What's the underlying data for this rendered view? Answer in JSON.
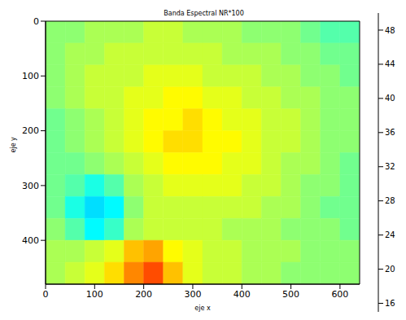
{
  "chart_data": {
    "type": "heatmap",
    "title": "Banda Espectral NR*100",
    "x_label": "eje x",
    "y_label": "eje y",
    "xlim": [
      0,
      640
    ],
    "xticks": [
      0,
      100,
      200,
      300,
      400,
      500,
      600
    ],
    "ylim": [
      480,
      0
    ],
    "yticks": [
      0,
      100,
      200,
      300,
      400
    ],
    "x_edges": [
      0,
      40,
      80,
      120,
      160,
      200,
      240,
      280,
      320,
      360,
      400,
      440,
      480,
      520,
      560,
      600,
      640
    ],
    "y_edges": [
      0,
      40,
      80,
      120,
      160,
      200,
      240,
      280,
      320,
      360,
      400,
      440,
      480
    ],
    "cells": [
      [
        33,
        33,
        34,
        34,
        34,
        35,
        35,
        34,
        34,
        34,
        33,
        33,
        33,
        32,
        31,
        31
      ],
      [
        33,
        34,
        34,
        35,
        35,
        35,
        35,
        35,
        35,
        34,
        34,
        34,
        33,
        33,
        32,
        32
      ],
      [
        33,
        34,
        35,
        35,
        35,
        36,
        36,
        36,
        35,
        35,
        35,
        34,
        34,
        33,
        33,
        32
      ],
      [
        33,
        34,
        35,
        35,
        36,
        36,
        37,
        37,
        36,
        36,
        35,
        35,
        34,
        34,
        33,
        33
      ],
      [
        32,
        33,
        34,
        35,
        36,
        37,
        37,
        38,
        37,
        36,
        36,
        35,
        35,
        34,
        33,
        33
      ],
      [
        32,
        33,
        34,
        35,
        36,
        37,
        38,
        38,
        37,
        37,
        36,
        35,
        35,
        34,
        33,
        33
      ],
      [
        32,
        32,
        33,
        34,
        35,
        36,
        37,
        37,
        37,
        36,
        36,
        35,
        34,
        34,
        33,
        32
      ],
      [
        32,
        31,
        29,
        31,
        34,
        35,
        36,
        36,
        36,
        36,
        35,
        35,
        34,
        33,
        33,
        32
      ],
      [
        32,
        29,
        27,
        28,
        33,
        35,
        35,
        35,
        35,
        35,
        35,
        34,
        34,
        33,
        32,
        32
      ],
      [
        33,
        31,
        28,
        30,
        34,
        35,
        35,
        35,
        35,
        34,
        34,
        34,
        33,
        33,
        33,
        32
      ],
      [
        34,
        34,
        35,
        36,
        39,
        40,
        37,
        36,
        35,
        35,
        34,
        34,
        34,
        33,
        33,
        33
      ],
      [
        34,
        35,
        36,
        38,
        41,
        43,
        39,
        36,
        35,
        35,
        34,
        34,
        33,
        33,
        33,
        33
      ]
    ],
    "colorbar_range": [
      15,
      50
    ],
    "colorbar_ticks": [
      16,
      20,
      24,
      28,
      32,
      36,
      40,
      44,
      48
    ]
  }
}
